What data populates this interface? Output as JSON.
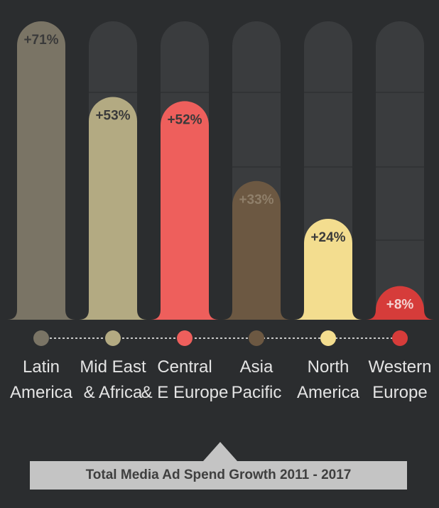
{
  "chart_data": {
    "type": "bar",
    "title": "Total Media Ad Spend Growth 2011 - 2017",
    "categories": [
      [
        "Latin",
        "America"
      ],
      [
        "Mid East",
        "& Africa"
      ],
      [
        "Central",
        "& E Europe"
      ],
      [
        "Asia",
        "Pacific"
      ],
      [
        "North",
        "America"
      ],
      [
        "Western",
        "Europe"
      ]
    ],
    "values": [
      71,
      53,
      52,
      33,
      24,
      8
    ],
    "value_labels": [
      "+71%",
      "+53%",
      "+52%",
      "+33%",
      "+24%",
      "+8%"
    ],
    "ylim": [
      0,
      71
    ],
    "grid": true,
    "colors": [
      "#7a7465",
      "#b3aa82",
      "#ee5f5c",
      "#6c5842",
      "#f3dd8f",
      "#d63c3a"
    ],
    "label_colors": [
      "#3a3a3a",
      "#3a3a3a",
      "#3a3a3a",
      "#8f7f6a",
      "#3a3a3a",
      "#f4d4d2"
    ],
    "track_color": "#3a3c3e",
    "background": "#2b2d2f"
  }
}
